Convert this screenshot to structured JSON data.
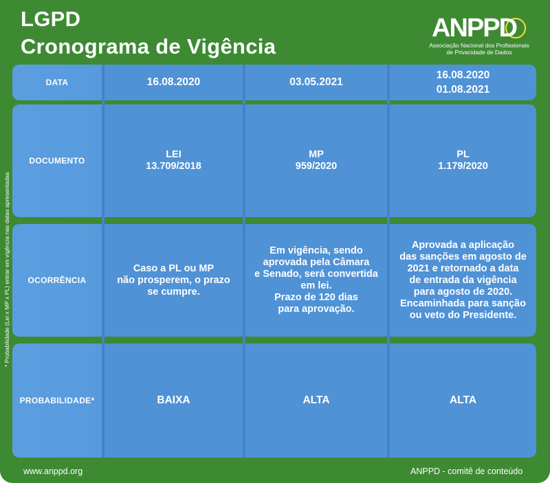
{
  "header": {
    "title_line1": "LGPD",
    "title_line2": "Cronograma de Vigência"
  },
  "logo": {
    "wordmark": "ANPPD",
    "subtitle_line1": "Associação Nacional dos Profissionais",
    "subtitle_line2": "de Privacidade de Dados"
  },
  "side_note": "* Probabilidade (Lei x MP x PL) entrar em vigência nas datas  apresentadas",
  "table": {
    "rows": [
      {
        "label": "DATA",
        "cells": [
          "16.08.2020",
          "03.05.2021",
          "16.08.2020\n01.08.2021"
        ]
      },
      {
        "label": "DOCUMENTO",
        "cells": [
          "LEI\n13.709/2018",
          "MP\n959/2020",
          "PL\n1.179/2020"
        ]
      },
      {
        "label": "OCORRÊNCIA",
        "cells": [
          "Caso a PL ou MP\nnão prosperem, o prazo\nse cumpre.",
          "Em vigência, sendo\naprovada pela Câmara\ne Senado, será convertida\nem lei.\nPrazo de 120 dias\npara aprovação.",
          "Aprovada a aplicação\ndas sanções em agosto de\n2021 e retornado a data\nde entrada da  vigência\npara agosto de 2020.\nEncaminhada para sanção\nou veto do  Presidente."
        ]
      },
      {
        "label": "PROBABILIDADE*",
        "cells": [
          "BAIXA",
          "ALTA",
          "ALTA"
        ]
      }
    ]
  },
  "footer": {
    "website": "www.anppd.org",
    "credit": "ANPPD - comitê de conteúdo"
  }
}
